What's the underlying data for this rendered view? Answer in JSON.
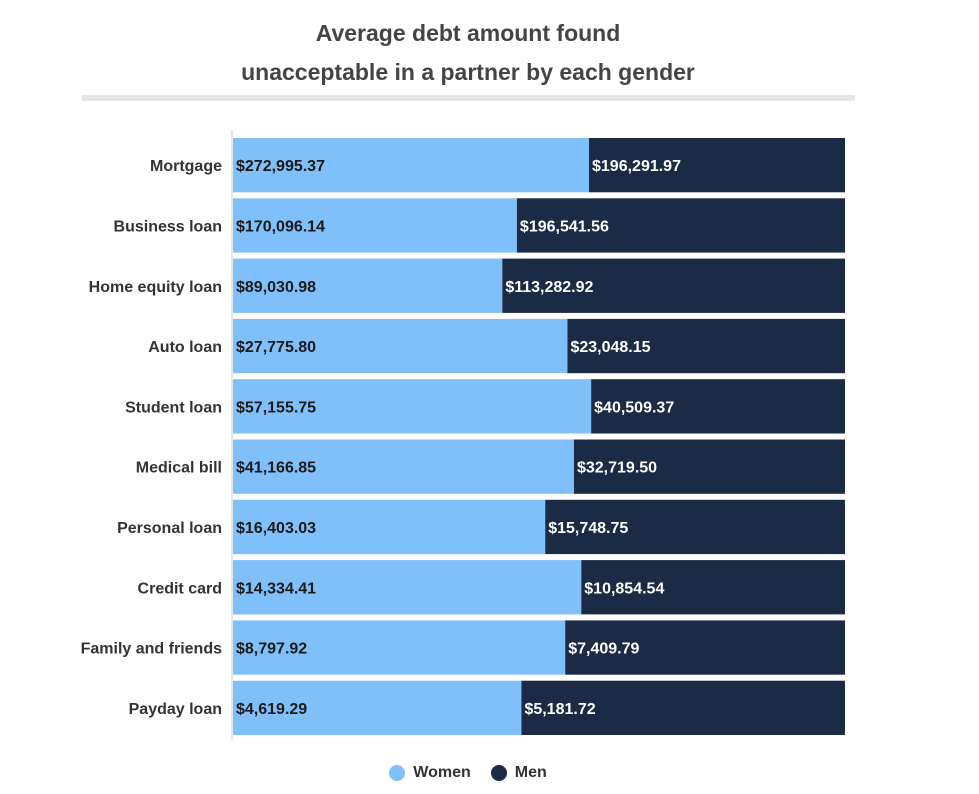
{
  "chart_data": {
    "type": "bar",
    "stacked": true,
    "normalized": true,
    "orientation": "horizontal",
    "title_lines": [
      "Average debt amount found",
      "unacceptable in a partner by each gender"
    ],
    "categories": [
      "Mortgage",
      "Business loan",
      "Home equity loan",
      "Auto loan",
      "Student loan",
      "Medical bill",
      "Personal loan",
      "Credit card",
      "Family and friends",
      "Payday loan"
    ],
    "series": [
      {
        "name": "Women",
        "color": "#7fbffa",
        "values": [
          272995.37,
          170096.14,
          89030.98,
          27775.8,
          57155.75,
          41166.85,
          16403.03,
          14334.41,
          8797.92,
          4619.29
        ],
        "labels": [
          "$272,995.37",
          "$170,096.14",
          "$89,030.98",
          "$27,775.80",
          "$57,155.75",
          "$41,166.85",
          "$16,403.03",
          "$14,334.41",
          "$8,797.92",
          "$4,619.29"
        ]
      },
      {
        "name": "Men",
        "color": "#1b2a45",
        "values": [
          196291.97,
          196541.56,
          113282.92,
          23048.15,
          40509.37,
          32719.5,
          15748.75,
          10854.54,
          7409.79,
          5181.72
        ],
        "labels": [
          "$196,291.97",
          "$196,541.56",
          "$113,282.92",
          "$23,048.15",
          "$40,509.37",
          "$32,719.50",
          "$15,748.75",
          "$10,854.54",
          "$7,409.79",
          "$5,181.72"
        ]
      }
    ],
    "legend": "bottom",
    "grid": false
  }
}
